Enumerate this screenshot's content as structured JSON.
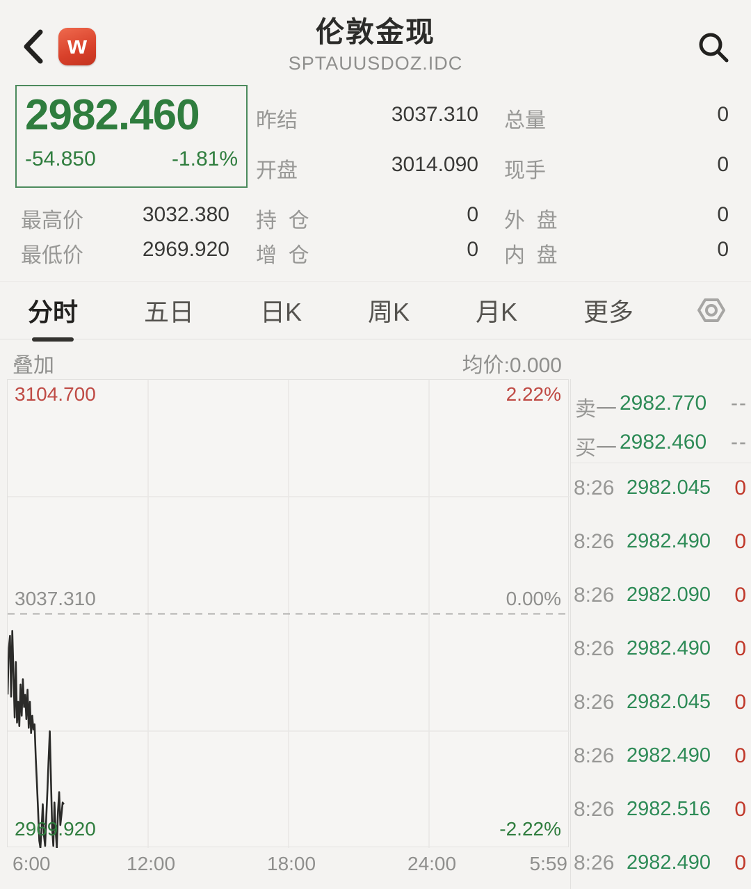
{
  "header": {
    "title": "伦敦金现",
    "subtitle": "SPTAUUSDOZ.IDC",
    "back_icon": "chevron-left",
    "app_badge_letter": "w",
    "search_icon": "magnifier"
  },
  "quote": {
    "last": "2982.460",
    "change": "-54.850",
    "change_pct": "-1.81%"
  },
  "stats_row1": [
    {
      "label": "昨结",
      "value": "3037.310"
    },
    {
      "label": "总量",
      "value": "0"
    }
  ],
  "stats_row2": [
    {
      "label": "开盘",
      "value": "3014.090"
    },
    {
      "label": "现手",
      "value": "0"
    }
  ],
  "stats_row3": [
    {
      "label": "最高价",
      "value": "3032.380"
    },
    {
      "label": "持  仓",
      "value": "0"
    },
    {
      "label": "外  盘",
      "value": "0"
    }
  ],
  "stats_row4": [
    {
      "label": "最低价",
      "value": "2969.920"
    },
    {
      "label": "增  仓",
      "value": "0"
    },
    {
      "label": "内  盘",
      "value": "0"
    }
  ],
  "tabs": [
    {
      "label": "分时",
      "active": true
    },
    {
      "label": "五日",
      "active": false
    },
    {
      "label": "日K",
      "active": false
    },
    {
      "label": "周K",
      "active": false
    },
    {
      "label": "月K",
      "active": false
    },
    {
      "label": "更多",
      "active": false
    }
  ],
  "settings_icon": "hex-nut",
  "subbar": {
    "overlay_label": "叠加",
    "avg_price_label": "均价:0.000"
  },
  "chart_data": {
    "type": "line",
    "title": "分时 (intraday) price line, 伦敦金现 SPTAUUSDOZ.IDC",
    "x_ticks": [
      "6:00",
      "12:00",
      "18:00",
      "24:00",
      "5:59"
    ],
    "x_total_minutes": 1440,
    "ylim": [
      2969.92,
      3104.7
    ],
    "baseline": 3037.31,
    "grid": true,
    "legend_position": "none",
    "y_labels": {
      "top": "3104.700",
      "top_pct": "2.22%",
      "mid": "3037.310",
      "mid_pct": "0.00%",
      "bottom": "2969.920",
      "bottom_pct": "-2.22%"
    },
    "line_color": "#2b2b29",
    "series": [
      {
        "name": "price",
        "interval_minutes": 3,
        "values": [
          3014.09,
          3027.5,
          3031.0,
          3013.5,
          3032.38,
          3020.0,
          3007.5,
          3023.5,
          3006.0,
          3012.0,
          3005.0,
          3017.0,
          3008.0,
          3018.5,
          3010.5,
          3014.0,
          3007.0,
          3015.5,
          3004.5,
          3012.0,
          3003.0,
          3008.0,
          3004.0,
          3005.5,
          2996.0,
          2988.5,
          2980.5,
          2972.0,
          2969.92,
          2975.5,
          2982.5,
          2973.5,
          2970.5,
          2978.5,
          2986.5,
          2995.5,
          3003.5,
          2989.5,
          2975.5,
          2970.5,
          2983.0,
          2975.0,
          2970.0,
          2980.5,
          2986.0,
          2976.5,
          2979.5,
          2983.0,
          2982.46
        ]
      }
    ]
  },
  "order_book": [
    {
      "label": "卖一",
      "price": "2982.770",
      "qty": "--"
    },
    {
      "label": "买一",
      "price": "2982.460",
      "qty": "--"
    }
  ],
  "trades": [
    {
      "time": "8:26",
      "price": "2982.045",
      "vol": "0"
    },
    {
      "time": "8:26",
      "price": "2982.490",
      "vol": "0"
    },
    {
      "time": "8:26",
      "price": "2982.090",
      "vol": "0"
    },
    {
      "time": "8:26",
      "price": "2982.490",
      "vol": "0"
    },
    {
      "time": "8:26",
      "price": "2982.045",
      "vol": "0"
    },
    {
      "time": "8:26",
      "price": "2982.490",
      "vol": "0"
    },
    {
      "time": "8:26",
      "price": "2982.516",
      "vol": "0"
    },
    {
      "time": "8:26",
      "price": "2982.490",
      "vol": "0"
    }
  ],
  "colors": {
    "down_green": "#2f7d3e",
    "up_red": "#bf4a44",
    "trade_price_green": "#2e8b57",
    "trade_vol_red": "#c0392b",
    "badge_red": "#d8402a",
    "background": "#f4f3f1",
    "line": "#2b2b29"
  }
}
